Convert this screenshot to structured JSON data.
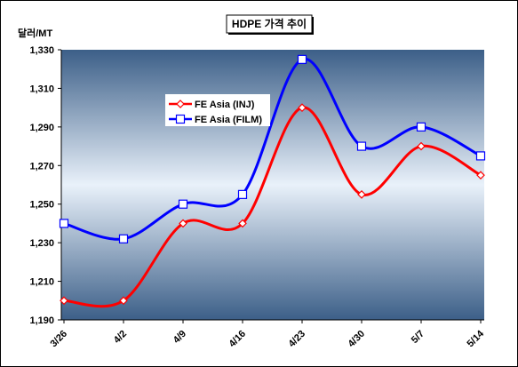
{
  "chart_data": {
    "type": "line",
    "title": "HDPE 가격 추이",
    "ylabel": "달러/MT",
    "xlabel": "",
    "categories": [
      "3/26",
      "4/2",
      "4/9",
      "4/16",
      "4/23",
      "4/30",
      "5/7",
      "5/14"
    ],
    "series": [
      {
        "name": "FE Asia (INJ)",
        "color": "#ff0000",
        "marker": "diamond",
        "values": [
          1200,
          1200,
          1240,
          1240,
          1300,
          1255,
          1280,
          1265
        ]
      },
      {
        "name": "FE Asia (FILM)",
        "color": "#0000ff",
        "marker": "square",
        "values": [
          1240,
          1232,
          1250,
          1255,
          1325,
          1280,
          1290,
          1275
        ]
      }
    ],
    "ylim": [
      1190,
      1330
    ],
    "yticks": [
      1190,
      1210,
      1230,
      1250,
      1270,
      1290,
      1310,
      1330
    ],
    "ytick_labels": [
      "1,190",
      "1,210",
      "1,230",
      "1,250",
      "1,270",
      "1,290",
      "1,310",
      "1,330"
    ],
    "grid": false,
    "legend_position": "upper-left",
    "colors": {
      "plot_top": "#3c5f88",
      "plot_mid": "#e9f1fa",
      "plot_bottom": "#3c5f88"
    }
  }
}
